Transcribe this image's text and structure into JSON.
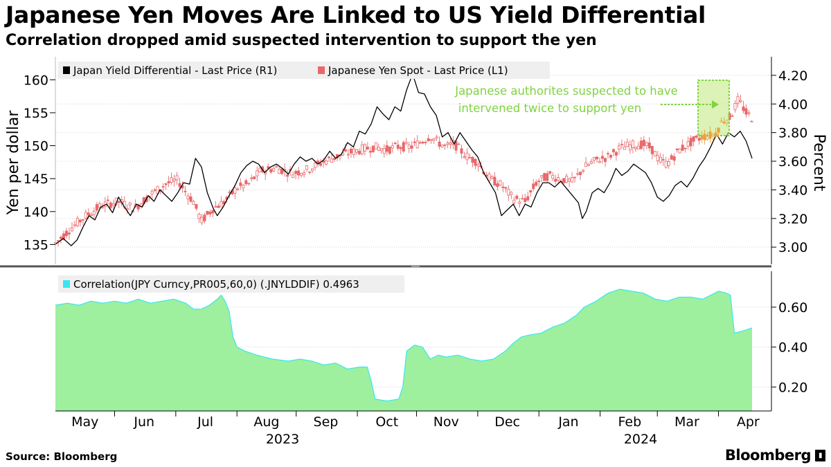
{
  "header": {
    "title": "Japanese Yen Moves Are Linked to US Yield Differential",
    "subtitle": "Correlation dropped amid suspected intervention to support the yen"
  },
  "footer": {
    "source": "Source: Bloomberg",
    "brand": "Bloomberg",
    "brand_icon": "bloomberg-terminal-icon"
  },
  "colors": {
    "yield_line": "#000000",
    "yen_candles": "#e8686a",
    "correlation_fill": "#9ef09e",
    "correlation_line": "#39e6ee",
    "annotation": "#7fd33f",
    "highlight_candles": "#e8a23c"
  },
  "chart_data": [
    {
      "type": "line",
      "panel": "top",
      "legend_position": "top-left",
      "y_left_label": "Yen per dollar",
      "y_left_range": [
        132,
        163.5
      ],
      "y_left_ticks": [
        "135",
        "140",
        "145",
        "150",
        "155",
        "160"
      ],
      "y_right_label": "Percent",
      "y_right_range": [
        2.88,
        4.33
      ],
      "y_right_ticks": [
        "3.00",
        "3.20",
        "3.40",
        "3.60",
        "3.80",
        "4.00",
        "4.20"
      ],
      "x_range_days": [
        0,
        353
      ],
      "annotation": {
        "lines": [
          "Japanese authorites suspected to have",
          "intervened twice to support yen"
        ],
        "arrow": "right",
        "highlight_days": [
          327,
          340
        ]
      },
      "series": [
        {
          "name": "Japan Yield Differential - Last Price (R1)",
          "axis": "right",
          "style": "line",
          "points": [
            [
              0,
              3.02
            ],
            [
              4,
              3.06
            ],
            [
              8,
              3.01
            ],
            [
              11,
              3.05
            ],
            [
              14,
              3.14
            ],
            [
              17,
              3.22
            ],
            [
              20,
              3.19
            ],
            [
              23,
              3.28
            ],
            [
              26,
              3.3
            ],
            [
              29,
              3.24
            ],
            [
              32,
              3.35
            ],
            [
              35,
              3.28
            ],
            [
              38,
              3.22
            ],
            [
              41,
              3.3
            ],
            [
              44,
              3.28
            ],
            [
              47,
              3.36
            ],
            [
              50,
              3.32
            ],
            [
              53,
              3.4
            ],
            [
              56,
              3.36
            ],
            [
              59,
              3.32
            ],
            [
              62,
              3.38
            ],
            [
              65,
              3.45
            ],
            [
              68,
              3.44
            ],
            [
              71,
              3.62
            ],
            [
              74,
              3.56
            ],
            [
              77,
              3.38
            ],
            [
              80,
              3.27
            ],
            [
              82,
              3.22
            ],
            [
              85,
              3.28
            ],
            [
              88,
              3.36
            ],
            [
              91,
              3.43
            ],
            [
              94,
              3.52
            ],
            [
              97,
              3.57
            ],
            [
              100,
              3.6
            ],
            [
              103,
              3.58
            ],
            [
              106,
              3.52
            ],
            [
              109,
              3.56
            ],
            [
              112,
              3.58
            ],
            [
              115,
              3.55
            ],
            [
              118,
              3.51
            ],
            [
              121,
              3.58
            ],
            [
              124,
              3.63
            ],
            [
              127,
              3.6
            ],
            [
              130,
              3.62
            ],
            [
              133,
              3.58
            ],
            [
              136,
              3.61
            ],
            [
              139,
              3.67
            ],
            [
              142,
              3.62
            ],
            [
              145,
              3.65
            ],
            [
              148,
              3.73
            ],
            [
              151,
              3.7
            ],
            [
              154,
              3.81
            ],
            [
              157,
              3.79
            ],
            [
              160,
              3.86
            ],
            [
              163,
              3.98
            ],
            [
              166,
              3.93
            ],
            [
              169,
              3.89
            ],
            [
              172,
              3.98
            ],
            [
              175,
              3.95
            ],
            [
              178,
              4.1
            ],
            [
              181,
              4.21
            ],
            [
              184,
              4.08
            ],
            [
              187,
              4.07
            ],
            [
              190,
              3.98
            ],
            [
              193,
              3.92
            ],
            [
              196,
              3.77
            ],
            [
              199,
              3.8
            ],
            [
              202,
              3.72
            ],
            [
              205,
              3.8
            ],
            [
              208,
              3.74
            ],
            [
              211,
              3.68
            ],
            [
              214,
              3.63
            ],
            [
              217,
              3.52
            ],
            [
              220,
              3.45
            ],
            [
              223,
              3.38
            ],
            [
              226,
              3.22
            ],
            [
              229,
              3.26
            ],
            [
              232,
              3.3
            ],
            [
              235,
              3.22
            ],
            [
              238,
              3.3
            ],
            [
              241,
              3.28
            ],
            [
              244,
              3.38
            ],
            [
              247,
              3.45
            ],
            [
              250,
              3.45
            ],
            [
              253,
              3.42
            ],
            [
              256,
              3.46
            ],
            [
              259,
              3.41
            ],
            [
              262,
              3.36
            ],
            [
              265,
              3.31
            ],
            [
              267,
              3.2
            ],
            [
              269,
              3.25
            ],
            [
              272,
              3.38
            ],
            [
              275,
              3.41
            ],
            [
              278,
              3.38
            ],
            [
              281,
              3.45
            ],
            [
              284,
              3.55
            ],
            [
              287,
              3.5
            ],
            [
              290,
              3.53
            ],
            [
              293,
              3.58
            ],
            [
              296,
              3.55
            ],
            [
              299,
              3.52
            ],
            [
              302,
              3.45
            ],
            [
              305,
              3.35
            ],
            [
              308,
              3.32
            ],
            [
              311,
              3.36
            ],
            [
              314,
              3.43
            ],
            [
              317,
              3.46
            ],
            [
              320,
              3.42
            ],
            [
              323,
              3.48
            ],
            [
              326,
              3.56
            ],
            [
              329,
              3.62
            ],
            [
              332,
              3.7
            ],
            [
              335,
              3.79
            ],
            [
              338,
              3.72
            ],
            [
              341,
              3.8
            ],
            [
              344,
              3.77
            ],
            [
              347,
              3.81
            ],
            [
              350,
              3.74
            ],
            [
              353,
              3.62
            ]
          ]
        },
        {
          "name": "Japanese Yen Spot - Last Price (L1)",
          "axis": "left",
          "style": "candlestick",
          "points": [
            [
              0,
              135.2
            ],
            [
              8,
              137.5
            ],
            [
              16,
              139.5
            ],
            [
              24,
              141
            ],
            [
              32,
              141.5
            ],
            [
              40,
              140.5
            ],
            [
              48,
              142.5
            ],
            [
              56,
              144.2
            ],
            [
              62,
              144.8
            ],
            [
              66,
              143
            ],
            [
              70,
              141.5
            ],
            [
              74,
              138.5
            ],
            [
              80,
              140.5
            ],
            [
              86,
              141.6
            ],
            [
              92,
              143.6
            ],
            [
              98,
              144.2
            ],
            [
              104,
              146.2
            ],
            [
              112,
              146.6
            ],
            [
              120,
              145.8
            ],
            [
              128,
              146.4
            ],
            [
              136,
              147.6
            ],
            [
              144,
              148.5
            ],
            [
              150,
              149
            ],
            [
              156,
              149.5
            ],
            [
              162,
              149.8
            ],
            [
              168,
              149.4
            ],
            [
              174,
              149.9
            ],
            [
              180,
              149.8
            ],
            [
              186,
              150.7
            ],
            [
              190,
              151.5
            ],
            [
              194,
              150.5
            ],
            [
              198,
              149.8
            ],
            [
              202,
              150.3
            ],
            [
              208,
              148.5
            ],
            [
              214,
              147.5
            ],
            [
              220,
              145
            ],
            [
              226,
              144
            ],
            [
              232,
              142
            ],
            [
              238,
              141.5
            ],
            [
              244,
              144.5
            ],
            [
              250,
              145.5
            ],
            [
              256,
              145
            ],
            [
              262,
              144.5
            ],
            [
              268,
              146.7
            ],
            [
              274,
              147.8
            ],
            [
              280,
              148.3
            ],
            [
              286,
              149.6
            ],
            [
              292,
              150.1
            ],
            [
              298,
              150.2
            ],
            [
              302,
              149.6
            ],
            [
              306,
              147.8
            ],
            [
              310,
              147.2
            ],
            [
              316,
              149.3
            ],
            [
              322,
              150.5
            ],
            [
              328,
              151.4
            ],
            [
              334,
              151.6
            ],
            [
              338,
              153.8
            ],
            [
              342,
              154.3
            ],
            [
              346,
              157
            ],
            [
              350,
              155
            ],
            [
              353,
              154.2
            ]
          ]
        }
      ]
    },
    {
      "type": "area",
      "panel": "bottom",
      "legend_position": "top-left",
      "y_range": [
        0.08,
        0.78
      ],
      "y_ticks": [
        "0.20",
        "0.40",
        "0.60"
      ],
      "x_range_days": [
        0,
        353
      ],
      "x_tick_labels": [
        "May",
        "Jun",
        "Jul",
        "Aug",
        "Sep",
        "Oct",
        "Nov",
        "Dec",
        "Jan",
        "Feb",
        "Mar",
        "Apr"
      ],
      "year_labels": [
        "2023",
        "2024"
      ],
      "series": [
        {
          "name": "Correlation(JPY Curncy,PR005,60,0) (.JNYLDDIF) 0.4963",
          "points": [
            [
              0,
              0.61
            ],
            [
              6,
              0.62
            ],
            [
              12,
              0.61
            ],
            [
              18,
              0.63
            ],
            [
              24,
              0.62
            ],
            [
              30,
              0.63
            ],
            [
              36,
              0.62
            ],
            [
              42,
              0.64
            ],
            [
              48,
              0.62
            ],
            [
              54,
              0.63
            ],
            [
              60,
              0.64
            ],
            [
              66,
              0.62
            ],
            [
              70,
              0.59
            ],
            [
              74,
              0.59
            ],
            [
              78,
              0.61
            ],
            [
              82,
              0.64
            ],
            [
              84,
              0.66
            ],
            [
              86,
              0.63
            ],
            [
              88,
              0.58
            ],
            [
              90,
              0.45
            ],
            [
              92,
              0.4
            ],
            [
              96,
              0.38
            ],
            [
              102,
              0.36
            ],
            [
              110,
              0.34
            ],
            [
              118,
              0.33
            ],
            [
              124,
              0.34
            ],
            [
              130,
              0.33
            ],
            [
              136,
              0.31
            ],
            [
              142,
              0.32
            ],
            [
              148,
              0.29
            ],
            [
              154,
              0.3
            ],
            [
              158,
              0.3
            ],
            [
              160,
              0.23
            ],
            [
              162,
              0.14
            ],
            [
              168,
              0.13
            ],
            [
              174,
              0.14
            ],
            [
              176,
              0.2
            ],
            [
              178,
              0.38
            ],
            [
              182,
              0.41
            ],
            [
              186,
              0.4
            ],
            [
              190,
              0.34
            ],
            [
              194,
              0.36
            ],
            [
              198,
              0.35
            ],
            [
              204,
              0.36
            ],
            [
              210,
              0.34
            ],
            [
              216,
              0.33
            ],
            [
              222,
              0.34
            ],
            [
              228,
              0.38
            ],
            [
              232,
              0.42
            ],
            [
              236,
              0.45
            ],
            [
              240,
              0.46
            ],
            [
              246,
              0.47
            ],
            [
              252,
              0.5
            ],
            [
              258,
              0.52
            ],
            [
              264,
              0.56
            ],
            [
              268,
              0.6
            ],
            [
              274,
              0.63
            ],
            [
              280,
              0.67
            ],
            [
              286,
              0.69
            ],
            [
              292,
              0.68
            ],
            [
              298,
              0.67
            ],
            [
              304,
              0.64
            ],
            [
              310,
              0.63
            ],
            [
              316,
              0.65
            ],
            [
              322,
              0.65
            ],
            [
              328,
              0.64
            ],
            [
              332,
              0.66
            ],
            [
              336,
              0.68
            ],
            [
              340,
              0.67
            ],
            [
              342,
              0.66
            ],
            [
              344,
              0.47
            ],
            [
              348,
              0.48
            ],
            [
              353,
              0.4963
            ]
          ]
        }
      ]
    }
  ]
}
